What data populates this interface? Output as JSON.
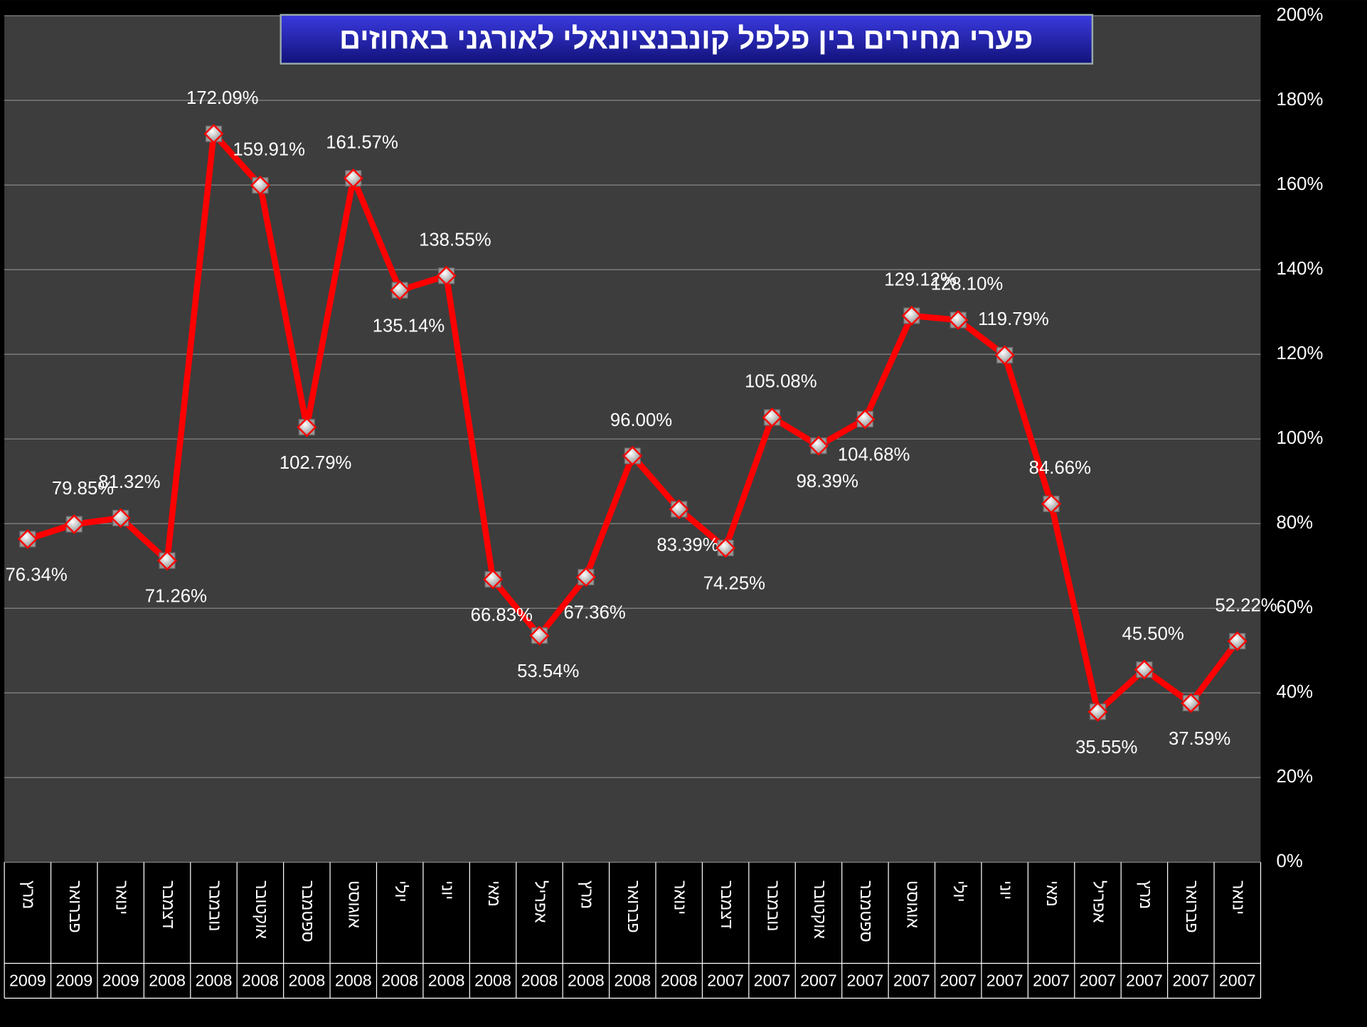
{
  "chart_data": {
    "type": "line",
    "title": "פערי מחירים בין פלפל קונבנציונאלי לאורגני באחוזים",
    "categories": [
      "מרץ",
      "פברואר",
      "ינואר",
      "דצמבר",
      "נובמבר",
      "אוקטובר",
      "ספטמבר",
      "אוגוסט",
      "יולי",
      "יוני",
      "מאי",
      "אפריל",
      "מרץ",
      "פברואר",
      "ינואר",
      "דצמבר",
      "נובמבר",
      "אוקטובר",
      "ספטמבר",
      "אוגוסט",
      "יולי",
      "יוני",
      "מאי",
      "אפריל",
      "מרץ",
      "פברואר",
      "ינואר"
    ],
    "years": [
      "2009",
      "2009",
      "2009",
      "2008",
      "2008",
      "2008",
      "2008",
      "2008",
      "2008",
      "2008",
      "2008",
      "2008",
      "2008",
      "2008",
      "2008",
      "2007",
      "2007",
      "2007",
      "2007",
      "2007",
      "2007",
      "2007",
      "2007",
      "2007",
      "2007",
      "2007",
      "2007"
    ],
    "series": [
      {
        "color": "#ff0000",
        "values": [
          76.34,
          79.85,
          81.32,
          71.26,
          172.09,
          159.91,
          102.79,
          161.57,
          135.14,
          138.55,
          66.83,
          53.54,
          67.36,
          96.0,
          83.39,
          74.25,
          105.08,
          98.39,
          104.68,
          129.12,
          128.1,
          119.79,
          84.66,
          35.55,
          45.5,
          37.59,
          52.22
        ],
        "value_labels": [
          "76.34%",
          "79.85%",
          "81.32%",
          "71.26%",
          "172.09%",
          "159.91%",
          "102.79%",
          "161.57%",
          "135.14%",
          "138.55%",
          "66.83%",
          "53.54%",
          "67.36%",
          "96.00%",
          "83.39%",
          "74.25%",
          "105.08%",
          "98.39%",
          "104.68%",
          "129.12%",
          "128.10%",
          "119.79%",
          "84.66%",
          "35.55%",
          "45.50%",
          "37.59%",
          "52.22%"
        ]
      }
    ],
    "ylim": [
      0,
      200
    ],
    "yticks": [
      {
        "value": 0,
        "label": "0%"
      },
      {
        "value": 20,
        "label": "20%"
      },
      {
        "value": 40,
        "label": "40%"
      },
      {
        "value": 60,
        "label": "60%"
      },
      {
        "value": 80,
        "label": "80%"
      },
      {
        "value": 100,
        "label": "100%"
      },
      {
        "value": 120,
        "label": "120%"
      },
      {
        "value": 140,
        "label": "140%"
      },
      {
        "value": 160,
        "label": "160%"
      },
      {
        "value": 180,
        "label": "180%"
      },
      {
        "value": 200,
        "label": "200%"
      }
    ],
    "grid": true
  }
}
